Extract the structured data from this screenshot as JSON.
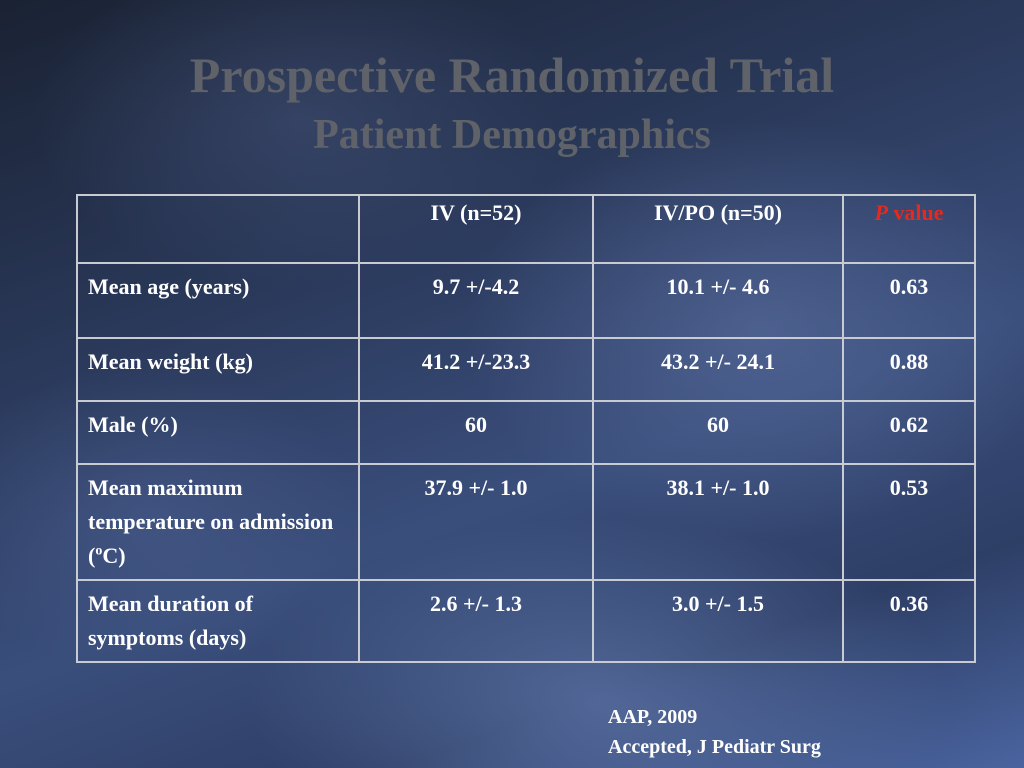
{
  "slide": {
    "title": "Prospective Randomized Trial",
    "subtitle": "Patient Demographics"
  },
  "table": {
    "headers": {
      "empty": "",
      "iv": "IV (n=52)",
      "ivpo": "IV/PO (n=50)",
      "p_italic": "P",
      "p_rest": " value"
    },
    "rows": [
      {
        "label": "Mean age (years)",
        "iv": "9.7 +/-4.2",
        "ivpo": "10.1 +/- 4.6",
        "p": "0.63"
      },
      {
        "label": "Mean weight (kg)",
        "iv": "41.2 +/-23.3",
        "ivpo": "43.2 +/- 24.1",
        "p": "0.88"
      },
      {
        "label": "Male (%)",
        "iv": "60",
        "ivpo": "60",
        "p": "0.62"
      },
      {
        "label_pre": "Mean maximum temperature on admission (",
        "label_sup": "o",
        "label_post": "C)",
        "iv": "37.9 +/- 1.0",
        "ivpo": "38.1 +/- 1.0",
        "p": "0.53"
      },
      {
        "label": "Mean duration of symptoms (days)",
        "iv": "2.6 +/- 1.3",
        "ivpo": "3.0 +/- 1.5",
        "p": "0.36"
      }
    ]
  },
  "reference": {
    "line1": "AAP, 2009",
    "line2": "Accepted, J Pediatr Surg"
  }
}
